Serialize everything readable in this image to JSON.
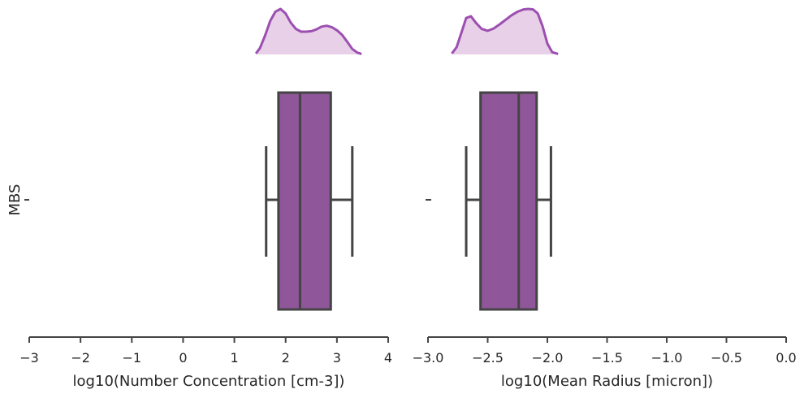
{
  "colors": {
    "box_fill": "#8f569a",
    "box_edge": "#444444",
    "kde_line": "#9c4fb0",
    "kde_fill": "#e7d0e8",
    "axis": "#444444",
    "text": "#262626"
  },
  "chart_data": [
    {
      "type": "box",
      "orientation": "horizontal",
      "xlabel": "log10(Number Concentration [cm-3])",
      "ylabel": "MBS",
      "category": "MBS",
      "xlim": [
        -3,
        4
      ],
      "xticks": [
        -3,
        -2,
        -1,
        0,
        1,
        2,
        3,
        4
      ],
      "xtick_labels": [
        "−3",
        "−2",
        "−1",
        "0",
        "1",
        "2",
        "3",
        "4"
      ],
      "box": {
        "whisker_low": 1.62,
        "q1": 1.86,
        "median": 2.28,
        "q3": 2.88,
        "whisker_high": 3.3,
        "outliers": []
      },
      "density": {
        "x": [
          1.42,
          1.5,
          1.6,
          1.7,
          1.8,
          1.9,
          2.0,
          2.1,
          2.2,
          2.3,
          2.4,
          2.5,
          2.6,
          2.7,
          2.8,
          2.9,
          3.0,
          3.1,
          3.2,
          3.3,
          3.4,
          3.48
        ],
        "y": [
          0.02,
          0.14,
          0.42,
          0.74,
          0.94,
          1.0,
          0.9,
          0.7,
          0.56,
          0.5,
          0.5,
          0.51,
          0.55,
          0.61,
          0.63,
          0.6,
          0.53,
          0.43,
          0.28,
          0.12,
          0.04,
          0.01
        ]
      }
    },
    {
      "type": "box",
      "orientation": "horizontal",
      "xlabel": "log10(Mean Radius [micron])",
      "category": "MBS",
      "xlim": [
        -3.0,
        0.0
      ],
      "xticks": [
        -3.0,
        -2.5,
        -2.0,
        -1.5,
        -1.0,
        -0.5,
        0.0
      ],
      "xtick_labels": [
        "−3.0",
        "−2.5",
        "−2.0",
        "−1.5",
        "−1.0",
        "−0.5",
        "0.0"
      ],
      "box": {
        "whisker_low": -2.68,
        "q1": -2.56,
        "median": -2.24,
        "q3": -2.09,
        "whisker_high": -1.97,
        "outliers": [
          -3.0
        ]
      },
      "density": {
        "x": [
          -2.8,
          -2.76,
          -2.72,
          -2.68,
          -2.64,
          -2.6,
          -2.55,
          -2.5,
          -2.45,
          -2.4,
          -2.35,
          -2.3,
          -2.25,
          -2.2,
          -2.16,
          -2.12,
          -2.08,
          -2.04,
          -2.0,
          -1.96,
          -1.91
        ],
        "y": [
          0.02,
          0.16,
          0.48,
          0.8,
          0.84,
          0.7,
          0.56,
          0.52,
          0.57,
          0.66,
          0.76,
          0.86,
          0.94,
          0.99,
          1.0,
          0.99,
          0.9,
          0.62,
          0.24,
          0.05,
          0.01
        ]
      }
    }
  ]
}
